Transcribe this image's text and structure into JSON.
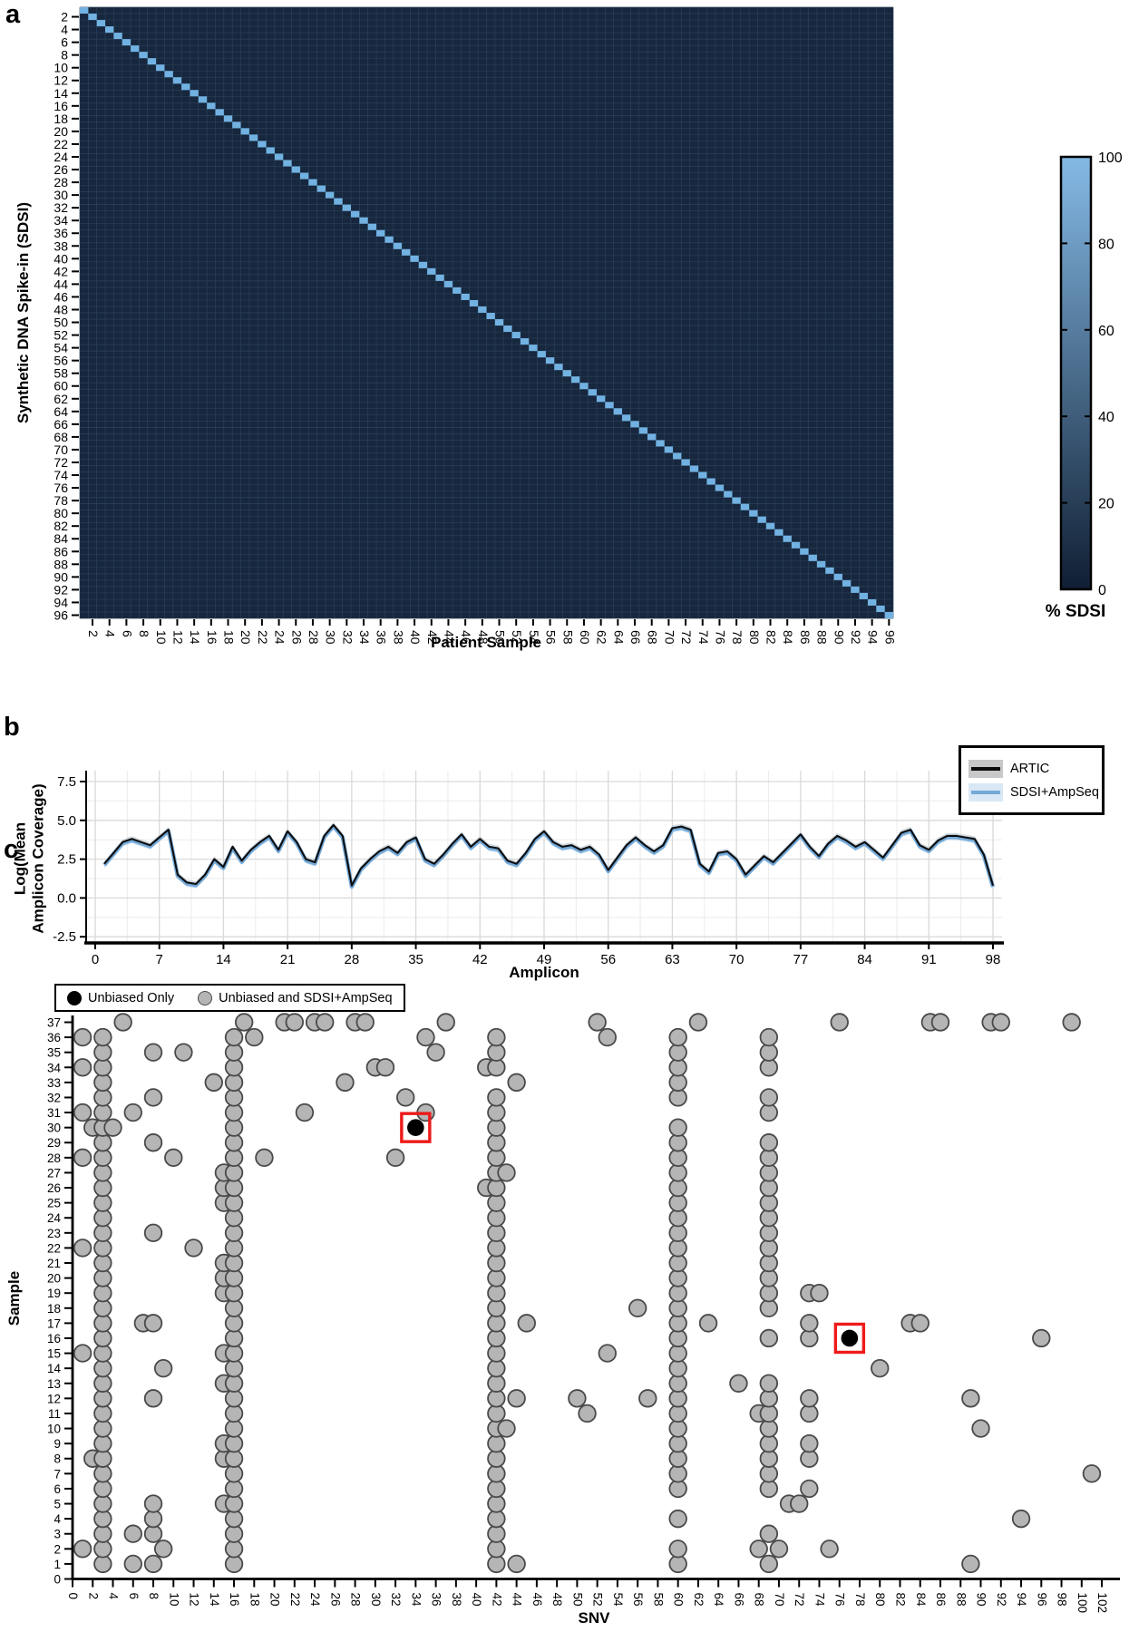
{
  "panels": {
    "a": {
      "letter": "a",
      "y_axis_title": "Synthetic DNA Spike-in (SDSI)",
      "x_axis_title": "Patient Sample",
      "colorbar_label": "% SDSI"
    },
    "b": {
      "letter": "b",
      "y_axis_title_line1": "Log(Mean",
      "y_axis_title_line2": "Amplicon Coverage)",
      "x_axis_title": "Amplicon",
      "legend": {
        "artic": "ARTIC",
        "sdsi": "SDSI+AmpSeq"
      }
    },
    "c": {
      "letter": "c",
      "y_axis_title": "Sample",
      "x_axis_title": "SNV",
      "legend": {
        "unbiased": "Unbiased Only",
        "both": "Unbiased and SDSI+AmpSeq"
      }
    }
  },
  "colors": {
    "heatmap_bg": "#16273e",
    "heatmap_grid": "#2c4059",
    "heatmap_diagonal": "#72b2e2",
    "colorbar_top": "#85bae6",
    "colorbar_bottom": "#101f33",
    "artic_line": "#0d0d0d",
    "artic_band": "#bbbbbb",
    "sdsi_line": "#74a9d8",
    "sdsi_band": "#c3dcf0",
    "gridline": "#d9d9d9",
    "gridline_minor": "#ececec",
    "scatter_gray_fill": "#b5b5b5",
    "scatter_gray_stroke": "#4a4a4a",
    "scatter_black": "#000000",
    "highlight_box": "#ee1a1a"
  },
  "chart_data": [
    {
      "id": "sdsi-vs-patient-heatmap",
      "type": "heatmap",
      "xlabel": "Patient Sample",
      "ylabel": "Synthetic DNA Spike-in (SDSI)",
      "n_rows": 96,
      "n_cols": 96,
      "x_ticks": {
        "from": 2,
        "to": 96,
        "step": 2
      },
      "y_ticks": {
        "from": 2,
        "to": 96,
        "step": 2
      },
      "diagonal_value": 100,
      "off_diagonal_value": 0,
      "colorbar": {
        "label": "% SDSI",
        "ticks": [
          100,
          80,
          60,
          40,
          20,
          0
        ],
        "min": 0,
        "max": 100
      }
    },
    {
      "id": "amplicon-coverage-lines",
      "type": "line",
      "xlabel": "Amplicon",
      "ylabel": "Log(Mean Amplicon Coverage)",
      "x_ticks": [
        0,
        7,
        14,
        21,
        28,
        35,
        42,
        49,
        56,
        63,
        70,
        77,
        84,
        91,
        98
      ],
      "y_ticks": [
        7.5,
        5.0,
        2.5,
        0.0,
        -2.5
      ],
      "xlim": [
        -2,
        100
      ],
      "ylim": [
        -3.3,
        8.3
      ],
      "legend_position": "top-right",
      "x_start": 1,
      "series": [
        {
          "name": "ARTIC",
          "offset": 0
        },
        {
          "name": "SDSI+AmpSeq",
          "offset": -0.08
        }
      ],
      "values": [
        2.2,
        2.9,
        3.6,
        3.8,
        3.6,
        3.4,
        3.9,
        4.4,
        1.5,
        1.0,
        0.9,
        1.5,
        2.5,
        2.0,
        3.3,
        2.4,
        3.1,
        3.6,
        4.0,
        3.1,
        4.3,
        3.6,
        2.5,
        2.3,
        4.0,
        4.7,
        4.0,
        0.8,
        1.9,
        2.5,
        3.0,
        3.3,
        2.9,
        3.6,
        3.9,
        2.5,
        2.2,
        2.8,
        3.5,
        4.1,
        3.3,
        3.8,
        3.3,
        3.2,
        2.4,
        2.2,
        2.9,
        3.8,
        4.3,
        3.6,
        3.3,
        3.4,
        3.1,
        3.3,
        2.8,
        1.8,
        2.6,
        3.4,
        3.9,
        3.4,
        3.0,
        3.4,
        4.5,
        4.6,
        4.4,
        2.2,
        1.7,
        2.9,
        3.0,
        2.5,
        1.5,
        2.1,
        2.7,
        2.3,
        2.9,
        3.5,
        4.1,
        3.3,
        2.7,
        3.5,
        4.0,
        3.7,
        3.3,
        3.6,
        3.1,
        2.6,
        3.4,
        4.2,
        4.4,
        3.4,
        3.1,
        3.7,
        4.0,
        4.0,
        3.9,
        3.8,
        2.8,
        0.8
      ]
    },
    {
      "id": "snv-sample-scatter",
      "type": "scatter",
      "xlabel": "SNV",
      "ylabel": "Sample",
      "x_ticks": {
        "from": 0,
        "to": 102,
        "step": 2
      },
      "y_ticks": {
        "from": 0,
        "to": 37,
        "step": 1
      },
      "legend": [
        "Unbiased Only",
        "Unbiased and SDSI+AmpSeq"
      ],
      "gray_points_by_sample": {
        "37": [
          5,
          17,
          21,
          22,
          24,
          25,
          28,
          29,
          37,
          52,
          62,
          76,
          85,
          86,
          91,
          92,
          99
        ],
        "36": [
          1,
          3,
          16,
          18,
          35,
          42,
          53,
          60,
          69
        ],
        "35": [
          3,
          8,
          11,
          16,
          36,
          42,
          60,
          69
        ],
        "34": [
          1,
          3,
          16,
          30,
          31,
          41,
          42,
          60,
          69
        ],
        "33": [
          3,
          14,
          16,
          27,
          44,
          60
        ],
        "32": [
          3,
          8,
          16,
          33,
          42,
          60,
          69
        ],
        "31": [
          1,
          3,
          6,
          16,
          23,
          35,
          42,
          69
        ],
        "30": [
          2,
          3,
          4,
          16,
          42,
          60
        ],
        "29": [
          3,
          8,
          16,
          42,
          60,
          69
        ],
        "28": [
          1,
          3,
          10,
          16,
          19,
          32,
          42,
          60,
          69
        ],
        "27": [
          3,
          15,
          16,
          42,
          43,
          60,
          69
        ],
        "26": [
          3,
          15,
          16,
          41,
          42,
          60,
          69
        ],
        "25": [
          3,
          15,
          16,
          42,
          60,
          69
        ],
        "24": [
          3,
          16,
          42,
          60,
          69
        ],
        "23": [
          3,
          8,
          16,
          42,
          60,
          69
        ],
        "22": [
          1,
          3,
          12,
          16,
          42,
          60,
          69
        ],
        "21": [
          3,
          15,
          16,
          42,
          60,
          69
        ],
        "20": [
          3,
          15,
          16,
          42,
          60,
          69
        ],
        "19": [
          3,
          15,
          16,
          42,
          60,
          69,
          73,
          74
        ],
        "18": [
          3,
          16,
          42,
          56,
          60,
          69
        ],
        "17": [
          3,
          7,
          8,
          16,
          42,
          45,
          60,
          63,
          73,
          83,
          84
        ],
        "16": [
          3,
          16,
          42,
          60,
          69,
          73,
          96
        ],
        "15": [
          1,
          3,
          15,
          16,
          42,
          53,
          60
        ],
        "14": [
          3,
          9,
          16,
          42,
          60,
          80
        ],
        "13": [
          3,
          15,
          16,
          42,
          60,
          66,
          69
        ],
        "12": [
          3,
          8,
          16,
          42,
          44,
          50,
          57,
          60,
          69,
          73,
          89
        ],
        "11": [
          3,
          16,
          42,
          51,
          60,
          68,
          69,
          73
        ],
        "10": [
          3,
          16,
          42,
          43,
          60,
          69,
          90
        ],
        "9": [
          3,
          15,
          16,
          42,
          60,
          69,
          73
        ],
        "8": [
          2,
          3,
          15,
          16,
          42,
          60,
          69,
          73
        ],
        "7": [
          3,
          16,
          42,
          60,
          69,
          101
        ],
        "6": [
          3,
          16,
          42,
          60,
          69,
          73
        ],
        "5": [
          3,
          8,
          15,
          16,
          42,
          71,
          72
        ],
        "4": [
          3,
          8,
          16,
          42,
          60,
          94
        ],
        "3": [
          3,
          6,
          8,
          16,
          42,
          69
        ],
        "2": [
          1,
          3,
          9,
          16,
          42,
          60,
          68,
          70,
          75
        ],
        "1": [
          3,
          6,
          8,
          16,
          42,
          44,
          60,
          69,
          89
        ]
      },
      "black_points": [
        [
          34,
          30
        ],
        [
          77,
          16
        ]
      ],
      "red_boxes": [
        [
          34,
          30
        ],
        [
          77,
          16
        ]
      ]
    }
  ]
}
